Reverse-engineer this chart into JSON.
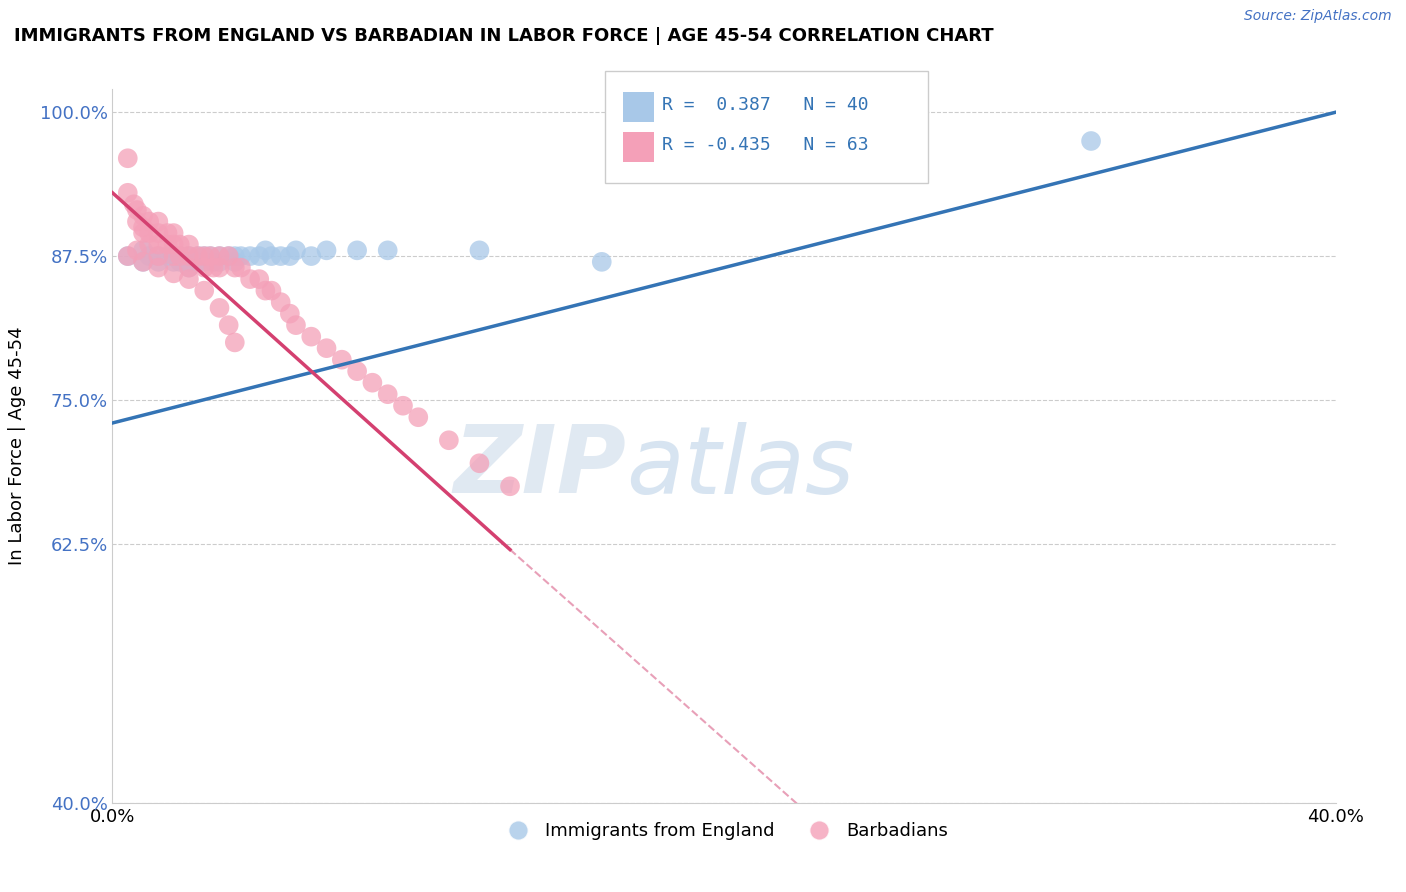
{
  "title": "IMMIGRANTS FROM ENGLAND VS BARBADIAN IN LABOR FORCE | AGE 45-54 CORRELATION CHART",
  "source": "Source: ZipAtlas.com",
  "ylabel": "In Labor Force | Age 45-54",
  "xlim": [
    0.0,
    0.4
  ],
  "ylim": [
    0.4,
    1.02
  ],
  "R_blue": 0.387,
  "N_blue": 40,
  "R_pink": -0.435,
  "N_pink": 63,
  "blue_color": "#a8c8e8",
  "pink_color": "#f4a0b8",
  "blue_line_color": "#3474b5",
  "pink_line_color": "#d44070",
  "pink_line_dash_color": "#e8a0b8",
  "legend_blue_label": "Immigrants from England",
  "legend_pink_label": "Barbadians",
  "blue_x": [
    0.005,
    0.01,
    0.01,
    0.012,
    0.015,
    0.015,
    0.018,
    0.02,
    0.02,
    0.022,
    0.022,
    0.025,
    0.025,
    0.025,
    0.028,
    0.028,
    0.03,
    0.03,
    0.032,
    0.033,
    0.035,
    0.035,
    0.038,
    0.04,
    0.04,
    0.042,
    0.045,
    0.048,
    0.05,
    0.052,
    0.055,
    0.058,
    0.06,
    0.065,
    0.07,
    0.08,
    0.09,
    0.12,
    0.16,
    0.32
  ],
  "blue_y": [
    0.875,
    0.88,
    0.87,
    0.875,
    0.875,
    0.87,
    0.875,
    0.875,
    0.87,
    0.875,
    0.87,
    0.875,
    0.87,
    0.865,
    0.875,
    0.87,
    0.875,
    0.87,
    0.875,
    0.87,
    0.875,
    0.87,
    0.875,
    0.875,
    0.87,
    0.875,
    0.875,
    0.875,
    0.88,
    0.875,
    0.875,
    0.875,
    0.88,
    0.875,
    0.88,
    0.88,
    0.88,
    0.88,
    0.87,
    0.975
  ],
  "pink_x": [
    0.005,
    0.005,
    0.007,
    0.008,
    0.008,
    0.01,
    0.01,
    0.01,
    0.012,
    0.012,
    0.012,
    0.015,
    0.015,
    0.015,
    0.015,
    0.018,
    0.018,
    0.02,
    0.02,
    0.02,
    0.022,
    0.022,
    0.025,
    0.025,
    0.025,
    0.028,
    0.03,
    0.03,
    0.032,
    0.033,
    0.035,
    0.035,
    0.038,
    0.04,
    0.042,
    0.045,
    0.048,
    0.05,
    0.052,
    0.055,
    0.058,
    0.06,
    0.065,
    0.07,
    0.075,
    0.08,
    0.085,
    0.09,
    0.095,
    0.1,
    0.11,
    0.12,
    0.13,
    0.005,
    0.008,
    0.01,
    0.015,
    0.02,
    0.025,
    0.03,
    0.035,
    0.038,
    0.04
  ],
  "pink_y": [
    0.96,
    0.93,
    0.92,
    0.915,
    0.905,
    0.91,
    0.9,
    0.895,
    0.905,
    0.895,
    0.885,
    0.905,
    0.895,
    0.885,
    0.875,
    0.895,
    0.885,
    0.895,
    0.885,
    0.875,
    0.885,
    0.875,
    0.885,
    0.875,
    0.865,
    0.875,
    0.875,
    0.865,
    0.875,
    0.865,
    0.875,
    0.865,
    0.875,
    0.865,
    0.865,
    0.855,
    0.855,
    0.845,
    0.845,
    0.835,
    0.825,
    0.815,
    0.805,
    0.795,
    0.785,
    0.775,
    0.765,
    0.755,
    0.745,
    0.735,
    0.715,
    0.695,
    0.675,
    0.875,
    0.88,
    0.87,
    0.865,
    0.86,
    0.855,
    0.845,
    0.83,
    0.815,
    0.8
  ]
}
